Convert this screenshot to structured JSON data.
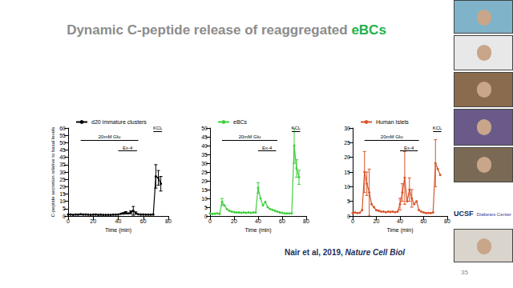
{
  "slide": {
    "title": "Dynamic C-peptide release of reaggregated eBCs",
    "citation": "Nair et al, 2019, Nature Cell Biol",
    "page": "35",
    "logos": [
      "UCSF",
      "Diabetes Center"
    ]
  },
  "chart_data": [
    {
      "type": "line",
      "xlabel": "Time (min)",
      "ylabel": "C-peptide secretion relative to basal levels",
      "xlim": [
        0,
        80
      ],
      "xticks": [
        0,
        20,
        40,
        60,
        80
      ],
      "ylim": [
        0,
        60
      ],
      "yticks": [
        0,
        5,
        10,
        15,
        20,
        25,
        30,
        35,
        40,
        45,
        50,
        55,
        60
      ],
      "grid": false,
      "annotations": [
        {
          "text": "20mM Glu",
          "start": 10,
          "end": 56
        },
        {
          "text": "Ex-4",
          "start": 40,
          "end": 55
        },
        {
          "text": "KCL",
          "start": 68,
          "end": 75
        }
      ],
      "x": [
        0,
        2,
        4,
        6,
        8,
        10,
        12,
        14,
        16,
        18,
        20,
        22,
        24,
        26,
        28,
        30,
        32,
        34,
        36,
        38,
        40,
        42,
        44,
        46,
        48,
        50,
        52,
        54,
        56,
        58,
        60,
        62,
        64,
        66,
        68,
        70,
        72,
        74
      ],
      "series": [
        {
          "name": "d20 immature clusters",
          "color": "#000000",
          "marker": "circle",
          "line_style": "solid",
          "values": [
            1,
            1,
            0.8,
            1,
            0.9,
            1.2,
            1,
            1,
            0.9,
            0.8,
            0.9,
            1,
            0.8,
            0.9,
            0.8,
            0.8,
            0.8,
            0.8,
            0.9,
            0.9,
            1,
            1.5,
            1.8,
            2.2,
            1.8,
            2.5,
            3.5,
            2,
            1.2,
            1,
            1,
            0.9,
            0.9,
            0.9,
            1,
            27,
            26,
            22
          ],
          "errors": [
            null,
            null,
            null,
            null,
            null,
            null,
            null,
            null,
            null,
            null,
            null,
            null,
            null,
            null,
            null,
            null,
            null,
            null,
            null,
            null,
            null,
            null,
            0.5,
            0.8,
            null,
            1,
            3,
            0.8,
            null,
            null,
            null,
            null,
            null,
            null,
            null,
            8,
            5,
            5
          ]
        }
      ]
    },
    {
      "type": "line",
      "xlabel": "Time (min)",
      "xlim": [
        0,
        80
      ],
      "xticks": [
        0,
        20,
        40,
        60,
        80
      ],
      "ylim": [
        0,
        50
      ],
      "yticks": [
        0,
        5,
        10,
        15,
        20,
        25,
        30,
        35,
        40,
        45,
        50
      ],
      "grid": false,
      "annotations": [
        {
          "text": "20mM Glu",
          "start": 10,
          "end": 56
        },
        {
          "text": "Ex-4",
          "start": 40,
          "end": 55
        },
        {
          "text": "KCL",
          "start": 68,
          "end": 75
        }
      ],
      "x": [
        0,
        2,
        4,
        6,
        8,
        10,
        12,
        14,
        16,
        18,
        20,
        22,
        24,
        26,
        28,
        30,
        32,
        34,
        36,
        38,
        40,
        42,
        44,
        46,
        48,
        50,
        52,
        54,
        56,
        58,
        60,
        62,
        64,
        66,
        68,
        70,
        72,
        74
      ],
      "series": [
        {
          "name": "eBCs",
          "color": "#3fcf3f",
          "marker": "circle",
          "line_style": "solid",
          "values": [
            1.5,
            1.2,
            1.3,
            1.5,
            1.2,
            8,
            6,
            4,
            3,
            2.5,
            2.2,
            2,
            2,
            1.8,
            2,
            1.8,
            2,
            1.8,
            2,
            2,
            16,
            10,
            6,
            8,
            5,
            4,
            3.5,
            3,
            2.5,
            2,
            1.8,
            1.5,
            1.5,
            1.5,
            1.5,
            40,
            27,
            22
          ],
          "errors": [
            null,
            null,
            null,
            null,
            null,
            2,
            null,
            null,
            null,
            null,
            null,
            null,
            null,
            null,
            null,
            null,
            null,
            null,
            null,
            null,
            3,
            null,
            null,
            null,
            null,
            null,
            null,
            null,
            null,
            null,
            null,
            null,
            null,
            null,
            null,
            10,
            5,
            4
          ]
        }
      ]
    },
    {
      "type": "line",
      "xlabel": "Time (min)",
      "xlim": [
        0,
        80
      ],
      "xticks": [
        0,
        20,
        40,
        60,
        80
      ],
      "ylim": [
        0,
        30
      ],
      "yticks": [
        0,
        5,
        10,
        15,
        20,
        25,
        30
      ],
      "grid": false,
      "annotations": [
        {
          "text": "20mM Glu",
          "start": 10,
          "end": 56
        },
        {
          "text": "Ex-4",
          "start": 40,
          "end": 55
        },
        {
          "text": "KCL",
          "start": 68,
          "end": 75
        }
      ],
      "x": [
        0,
        2,
        4,
        6,
        8,
        10,
        12,
        14,
        16,
        18,
        20,
        22,
        24,
        26,
        28,
        30,
        32,
        34,
        36,
        38,
        40,
        42,
        44,
        46,
        48,
        50,
        52,
        54,
        56,
        58,
        60,
        62,
        64,
        66,
        68,
        70,
        72,
        74
      ],
      "series": [
        {
          "name": "Human Islets",
          "color": "#d9552b",
          "marker": "circle",
          "line_style": "solid",
          "values": [
            1,
            1.2,
            1,
            1.1,
            2,
            15,
            11,
            8,
            4,
            3,
            2,
            1.8,
            1.5,
            1.5,
            1.3,
            1.5,
            1.4,
            1.5,
            1.3,
            1.5,
            4,
            8,
            13,
            5,
            9,
            6,
            4,
            5,
            2,
            1.5,
            1.2,
            1,
            1,
            1,
            1.2,
            18,
            16,
            14
          ],
          "errors": [
            null,
            null,
            null,
            null,
            null,
            7,
            4,
            8,
            null,
            null,
            null,
            null,
            null,
            null,
            null,
            null,
            null,
            null,
            null,
            null,
            2,
            3,
            9,
            null,
            4,
            3,
            null,
            null,
            null,
            null,
            null,
            null,
            null,
            null,
            null,
            8,
            null,
            null
          ]
        }
      ]
    }
  ]
}
